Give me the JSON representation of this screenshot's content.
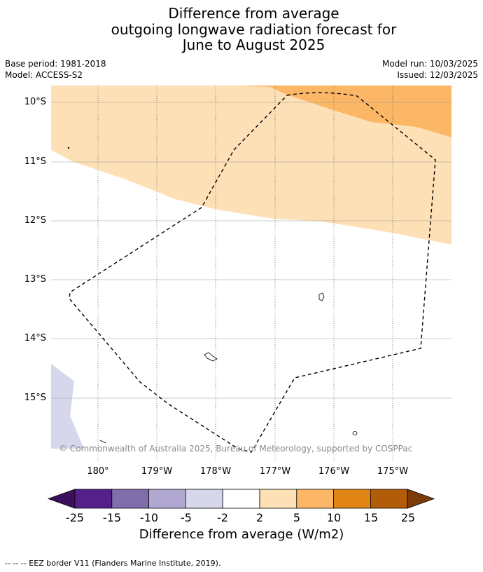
{
  "header": {
    "title_lines": [
      "Difference from average",
      "outgoing longwave radiation forecast for",
      "June to August 2025"
    ],
    "base_period": "Base period: 1981-2018",
    "model": "Model: ACCESS-S2",
    "model_run": "Model run: 10/03/2025",
    "issued": "Issued: 12/03/2025"
  },
  "map": {
    "lat_labels": [
      "10°S",
      "11°S",
      "12°S",
      "13°S",
      "14°S",
      "15°S"
    ],
    "lon_labels": [
      "180°",
      "179°W",
      "178°W",
      "177°W",
      "176°W",
      "175°W"
    ],
    "copyright": "© Commonwealth of Australia 2025, Bureau of Meteorology, supported by COSPPac",
    "colors": {
      "light_orange": "#fde0b5",
      "orange": "#fcb766",
      "light_purple": "#d6d7ea",
      "eez_border": "#000000"
    }
  },
  "colorbar": {
    "ticks": [
      "-25",
      "-15",
      "-10",
      "-5",
      "-2",
      "2",
      "5",
      "10",
      "15",
      "25"
    ],
    "colors": [
      "#3b0f5c",
      "#56208a",
      "#7f6eab",
      "#b0a8d1",
      "#d6d7ea",
      "#ffffff",
      "#fde0b5",
      "#fcb766",
      "#e08416",
      "#b25b09",
      "#7e3b0a"
    ],
    "label": "Difference from average (W/m2)"
  },
  "footer": {
    "legend_text": "--  --  -- EEZ border V11 (Flanders Marine Institute, 2019)."
  }
}
